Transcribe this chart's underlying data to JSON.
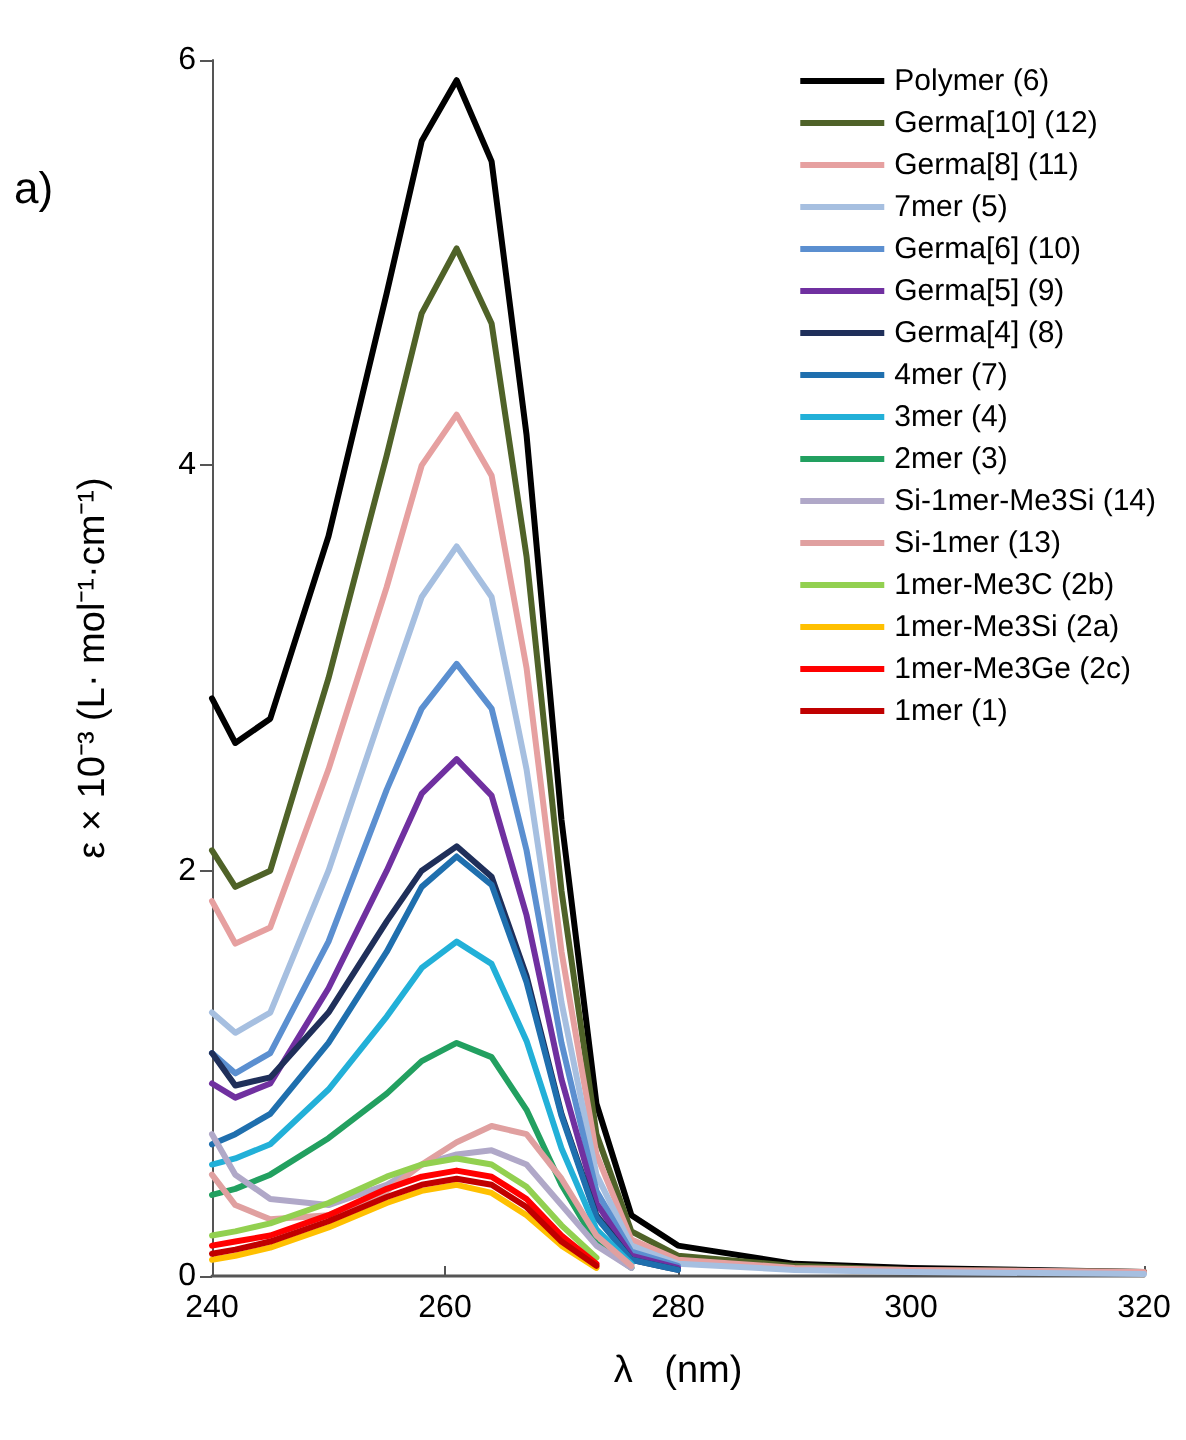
{
  "chart_data": {
    "type": "line",
    "title": "a)",
    "xlabel": "λ   (nm)",
    "ylabel": "ε × 10⁻³ (L· mol⁻¹·cm⁻¹)",
    "x": [
      240,
      242,
      245,
      250,
      255,
      258,
      261,
      264,
      267,
      270,
      273,
      276,
      280,
      290,
      300,
      320
    ],
    "xlim": [
      240,
      320
    ],
    "xticks": [
      240,
      260,
      280,
      300,
      320
    ],
    "ylim": [
      0,
      6
    ],
    "yticks": [
      0,
      2,
      4,
      6
    ],
    "grid": false,
    "legend": "top right",
    "marker": "none",
    "line_style": "solid",
    "series": [
      {
        "name": "Polymer (6)",
        "color": "#000000",
        "values": [
          2.85,
          2.63,
          2.75,
          3.65,
          4.85,
          5.6,
          5.9,
          5.5,
          4.15,
          2.25,
          0.85,
          0.3,
          0.15,
          0.06,
          0.04,
          0.02
        ]
      },
      {
        "name": "Germa[10] (12)",
        "color": "#4f6228",
        "values": [
          2.1,
          1.92,
          2.0,
          2.95,
          4.05,
          4.75,
          5.07,
          4.7,
          3.55,
          1.9,
          0.7,
          0.22,
          0.1,
          0.05,
          0.03,
          0.02
        ]
      },
      {
        "name": "Germa[8] (11)",
        "color": "#e6a0a0",
        "values": [
          1.85,
          1.64,
          1.72,
          2.5,
          3.4,
          4.0,
          4.25,
          3.95,
          3.0,
          1.6,
          0.6,
          0.18,
          0.08,
          0.04,
          0.03,
          0.02
        ]
      },
      {
        "name": "7mer (5)",
        "color": "#a6bfe0",
        "values": [
          1.3,
          1.2,
          1.3,
          2.0,
          2.85,
          3.35,
          3.6,
          3.35,
          2.5,
          1.35,
          0.5,
          0.15,
          0.06,
          0.03,
          0.02,
          0.01
        ]
      },
      {
        "name": "Germa[6] (10)",
        "color": "#5b8fd0",
        "values": [
          1.1,
          1.0,
          1.1,
          1.65,
          2.4,
          2.8,
          3.02,
          2.8,
          2.1,
          1.15,
          0.42,
          0.12,
          0.05,
          null,
          null,
          null
        ]
      },
      {
        "name": "Germa[5] (9)",
        "color": "#7030a0",
        "values": [
          0.95,
          0.88,
          0.95,
          1.42,
          2.0,
          2.38,
          2.55,
          2.37,
          1.78,
          0.97,
          0.36,
          0.1,
          0.04,
          null,
          null,
          null
        ]
      },
      {
        "name": "Germa[4] (8)",
        "color": "#1f2f5a",
        "values": [
          1.1,
          0.94,
          0.98,
          1.3,
          1.75,
          2.0,
          2.12,
          1.97,
          1.48,
          0.8,
          0.3,
          0.08,
          0.03,
          null,
          null,
          null
        ]
      },
      {
        "name": "4mer (7)",
        "color": "#1f6fae",
        "values": [
          0.65,
          0.7,
          0.8,
          1.15,
          1.6,
          1.92,
          2.07,
          1.93,
          1.45,
          0.79,
          0.29,
          0.08,
          0.03,
          null,
          null,
          null
        ]
      },
      {
        "name": "3mer (4)",
        "color": "#22b0d8",
        "values": [
          0.55,
          0.58,
          0.65,
          0.92,
          1.28,
          1.52,
          1.65,
          1.54,
          1.16,
          0.63,
          0.23,
          0.06,
          null,
          null,
          null,
          null
        ]
      },
      {
        "name": "2mer (3)",
        "color": "#22a060",
        "values": [
          0.4,
          0.43,
          0.5,
          0.68,
          0.9,
          1.06,
          1.15,
          1.08,
          0.82,
          0.45,
          0.16,
          0.04,
          null,
          null,
          null,
          null
        ]
      },
      {
        "name": "Si-1mer-Me3Si (14)",
        "color": "#b0a8c8",
        "values": [
          0.7,
          0.5,
          0.38,
          0.35,
          0.45,
          0.55,
          0.6,
          0.62,
          0.55,
          0.35,
          0.15,
          0.04,
          null,
          null,
          null,
          null
        ]
      },
      {
        "name": "Si-1mer (13)",
        "color": "#e0a0a0",
        "values": [
          0.5,
          0.35,
          0.28,
          0.3,
          0.42,
          0.55,
          0.66,
          0.74,
          0.7,
          0.48,
          0.2,
          0.05,
          null,
          null,
          null,
          null
        ]
      },
      {
        "name": "1mer-Me3C (2b)",
        "color": "#92d050",
        "values": [
          0.2,
          0.22,
          0.26,
          0.36,
          0.49,
          0.55,
          0.58,
          0.55,
          0.44,
          0.25,
          0.09,
          null,
          null,
          null,
          null,
          null
        ]
      },
      {
        "name": "1mer-Me3Si (2a)",
        "color": "#ffc000",
        "values": [
          0.08,
          0.1,
          0.14,
          0.24,
          0.36,
          0.42,
          0.45,
          0.41,
          0.3,
          0.15,
          0.04,
          null,
          null,
          null,
          null,
          null
        ]
      },
      {
        "name": "1mer-Me3Ge (2c)",
        "color": "#ff0000",
        "values": [
          0.15,
          0.17,
          0.2,
          0.3,
          0.43,
          0.49,
          0.52,
          0.49,
          0.38,
          0.2,
          0.06,
          null,
          null,
          null,
          null,
          null
        ]
      },
      {
        "name": "1mer (1)",
        "color": "#c00000",
        "values": [
          0.11,
          0.13,
          0.17,
          0.27,
          0.39,
          0.45,
          0.48,
          0.45,
          0.34,
          0.17,
          0.05,
          null,
          null,
          null,
          null,
          null
        ]
      }
    ]
  }
}
